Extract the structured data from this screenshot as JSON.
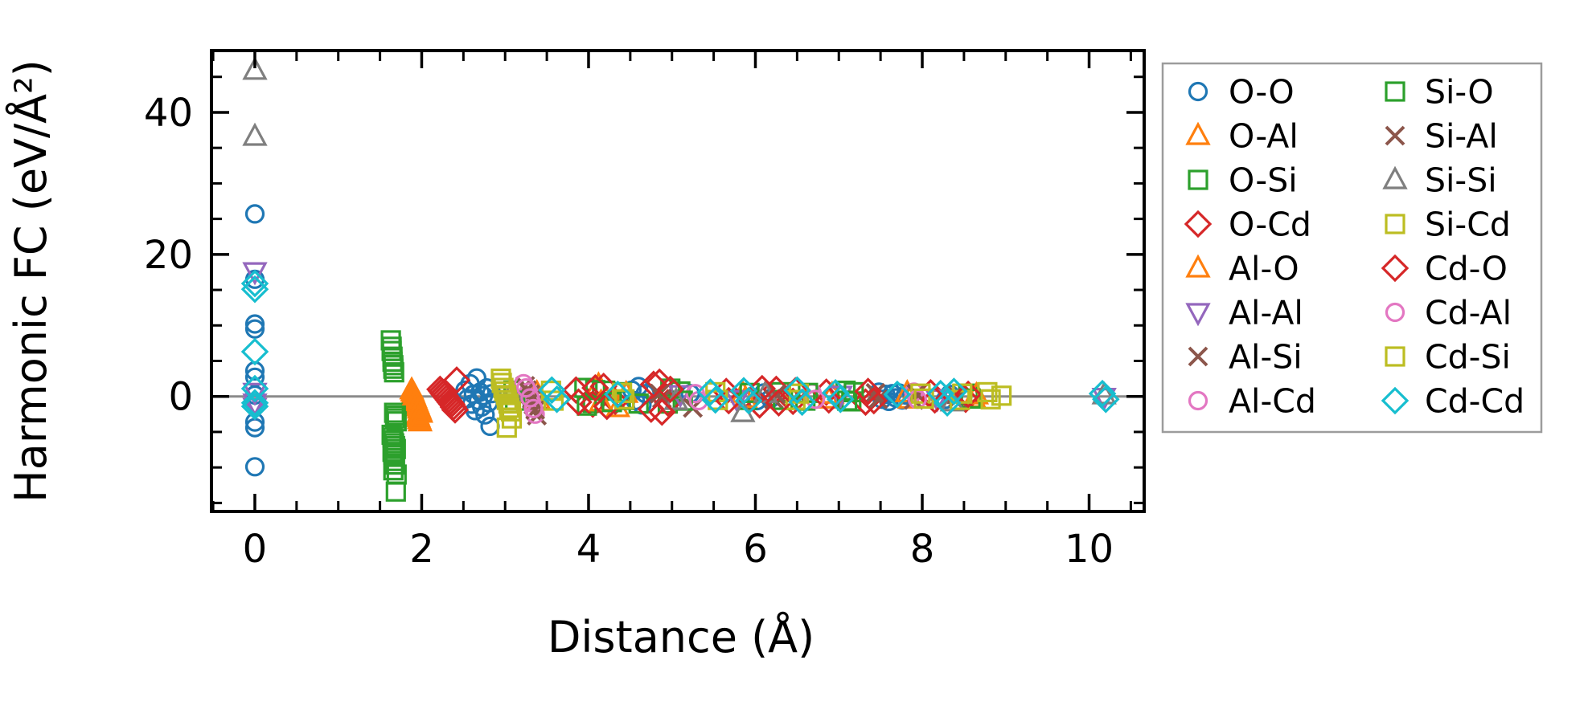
{
  "figure": {
    "background": "#ffffff",
    "frame_color": "#000000",
    "zero_line_color": "#8a8a8a",
    "legend_border_color": "#9c9c9c",
    "tick_label_color": "#000000"
  },
  "chart_data": {
    "type": "scatter",
    "title": "",
    "xlabel": "Distance (Å)",
    "ylabel": "Harmonic FC (eV/Å²)",
    "xlim": [
      -0.52,
      10.66
    ],
    "ylim": [
      -16.2,
      48.7
    ],
    "x_major_ticks": [
      0,
      2,
      4,
      6,
      8,
      10
    ],
    "x_minor_tick_step": 0.5,
    "y_major_ticks": [
      0,
      20,
      40
    ],
    "y_minor_tick_step": 5,
    "grid": false,
    "zero_line_y": 0,
    "tick_direction": "in",
    "legend_position": "outside-right, 2 columns, column-major order",
    "series": [
      {
        "name": "O-O",
        "marker": "circle",
        "color": "#1f77b4",
        "points": [
          [
            0,
            25.7
          ],
          [
            0,
            16.5
          ],
          [
            0,
            10.2
          ],
          [
            0,
            9.5
          ],
          [
            0,
            3.6
          ],
          [
            0,
            2.7
          ],
          [
            0,
            0.2
          ],
          [
            0,
            -3.6
          ],
          [
            0,
            -4.4
          ],
          [
            0,
            -9.9
          ],
          [
            2.52,
            0.9
          ],
          [
            2.55,
            -0.3
          ],
          [
            2.58,
            1.8
          ],
          [
            2.6,
            -1.1
          ],
          [
            2.62,
            0.3
          ],
          [
            2.64,
            -2.0
          ],
          [
            2.66,
            2.6
          ],
          [
            2.68,
            -0.6
          ],
          [
            2.7,
            0.6
          ],
          [
            2.72,
            -1.5
          ],
          [
            2.74,
            0.1
          ],
          [
            2.76,
            -2.6
          ],
          [
            2.78,
            1.2
          ],
          [
            2.8,
            -0.9
          ],
          [
            2.82,
            -4.2
          ],
          [
            2.84,
            0.4
          ],
          [
            4.52,
            0.9
          ],
          [
            4.56,
            -0.6
          ],
          [
            4.6,
            1.4
          ],
          [
            4.64,
            -1.2
          ],
          [
            4.68,
            0.4
          ],
          [
            5.22,
            0.4
          ],
          [
            6.02,
            -0.6
          ],
          [
            6.1,
            0.5
          ],
          [
            6.18,
            -0.3
          ],
          [
            7.48,
            0.6
          ],
          [
            7.52,
            -0.4
          ],
          [
            7.56,
            0.3
          ],
          [
            7.6,
            -0.7
          ],
          [
            7.64,
            0.4
          ],
          [
            7.68,
            -0.2
          ],
          [
            7.72,
            0.5
          ],
          [
            7.76,
            -0.5
          ],
          [
            7.8,
            0.2
          ],
          [
            8.28,
            -0.4
          ],
          [
            8.33,
            0.3
          ]
        ]
      },
      {
        "name": "O-Al",
        "marker": "triangle-up",
        "color": "#ff7f0e",
        "points": [
          [
            1.88,
            0.9
          ],
          [
            1.9,
            0.3
          ],
          [
            1.92,
            -0.3
          ],
          [
            1.94,
            -0.9
          ],
          [
            1.96,
            -1.5
          ],
          [
            1.98,
            -2.1
          ],
          [
            1.95,
            -2.7
          ],
          [
            1.97,
            -3.3
          ],
          [
            3.38,
            0.5
          ],
          [
            4.12,
            1.6
          ],
          [
            4.35,
            -1.6
          ],
          [
            5.85,
            0.4
          ],
          [
            6.88,
            -0.4
          ],
          [
            7.82,
            0.5
          ],
          [
            8.62,
            -0.3
          ]
        ]
      },
      {
        "name": "O-Si",
        "marker": "square",
        "color": "#2ca02c",
        "points": [
          [
            1.63,
            7.9
          ],
          [
            1.64,
            6.4
          ],
          [
            1.65,
            4.9
          ],
          [
            1.66,
            3.9
          ],
          [
            1.67,
            -2.3
          ],
          [
            1.68,
            -3.1
          ],
          [
            1.64,
            -5.4
          ],
          [
            1.66,
            -6.2
          ],
          [
            1.68,
            -7.0
          ],
          [
            1.65,
            -7.8
          ],
          [
            1.67,
            -9.1
          ],
          [
            1.66,
            -10.4
          ],
          [
            1.69,
            -13.4
          ],
          [
            3.1,
            0.8
          ],
          [
            3.95,
            1.2
          ],
          [
            4.05,
            -0.9
          ],
          [
            4.2,
            0.8
          ],
          [
            4.4,
            0.6
          ],
          [
            4.6,
            -1.0
          ],
          [
            4.95,
            -1.0
          ],
          [
            5.1,
            0.7
          ],
          [
            5.9,
            -0.5
          ],
          [
            6.3,
            0.6
          ],
          [
            6.6,
            -0.6
          ],
          [
            7.08,
            0.8
          ],
          [
            7.15,
            -0.7
          ],
          [
            8.55,
            0.4
          ]
        ]
      },
      {
        "name": "O-Cd",
        "marker": "diamond",
        "color": "#d62728",
        "points": [
          [
            2.22,
            1.0
          ],
          [
            2.26,
            0.4
          ],
          [
            2.3,
            -0.2
          ],
          [
            2.34,
            -0.8
          ],
          [
            2.38,
            -1.5
          ],
          [
            2.42,
            2.3
          ],
          [
            3.85,
            0.9
          ],
          [
            4.05,
            -1.1
          ],
          [
            4.18,
            1.4
          ],
          [
            4.32,
            -0.7
          ],
          [
            4.75,
            -1.8
          ],
          [
            4.85,
            2.0
          ],
          [
            4.95,
            -0.9
          ],
          [
            5.65,
            0.7
          ],
          [
            6.05,
            -1.2
          ],
          [
            6.25,
            1.0
          ],
          [
            6.45,
            -0.7
          ],
          [
            6.85,
            0.6
          ],
          [
            7.32,
            -0.8
          ],
          [
            8.1,
            0.5
          ],
          [
            8.52,
            -0.4
          ]
        ]
      },
      {
        "name": "Al-O",
        "marker": "triangle-up",
        "color": "#ff7f0e",
        "points": [
          [
            1.89,
            0.6
          ],
          [
            1.91,
            0.0
          ],
          [
            1.93,
            -0.6
          ],
          [
            1.95,
            -1.2
          ],
          [
            1.97,
            -1.8
          ],
          [
            1.99,
            -2.4
          ],
          [
            1.96,
            -3.0
          ],
          [
            1.98,
            -3.6
          ],
          [
            3.4,
            -0.5
          ],
          [
            4.15,
            -0.8
          ],
          [
            4.45,
            0.4
          ],
          [
            5.88,
            -0.3
          ],
          [
            6.92,
            0.3
          ],
          [
            7.85,
            -0.4
          ],
          [
            8.65,
            0.2
          ]
        ]
      },
      {
        "name": "Al-Al",
        "marker": "triangle-down",
        "color": "#9467bd",
        "points": [
          [
            0,
            17.6
          ],
          [
            0,
            0.6
          ],
          [
            0,
            -0.9
          ],
          [
            0,
            -1.5
          ],
          [
            5.1,
            0.3
          ],
          [
            5.78,
            -0.4
          ],
          [
            7.02,
            0.2
          ],
          [
            8.18,
            -0.3
          ],
          [
            10.18,
            -0.1
          ]
        ]
      },
      {
        "name": "Al-Si",
        "marker": "x",
        "color": "#8c564b",
        "points": [
          [
            3.24,
            1.5
          ],
          [
            3.3,
            0.3
          ],
          [
            3.34,
            -1.2
          ],
          [
            3.38,
            -2.7
          ],
          [
            4.85,
            0.4
          ],
          [
            5.25,
            -1.6
          ],
          [
            6.22,
            -0.4
          ],
          [
            7.44,
            0.5
          ],
          [
            7.9,
            -0.5
          ],
          [
            8.4,
            0.3
          ]
        ]
      },
      {
        "name": "Al-Cd",
        "marker": "circle",
        "color": "#e377c2",
        "points": [
          [
            3.22,
            1.8
          ],
          [
            3.28,
            0.6
          ],
          [
            3.32,
            -0.9
          ],
          [
            3.36,
            -2.5
          ],
          [
            5.28,
            0.4
          ],
          [
            6.68,
            0.5
          ],
          [
            7.9,
            0.6
          ]
        ]
      },
      {
        "name": "Si-O",
        "marker": "square",
        "color": "#2ca02c",
        "points": [
          [
            1.64,
            7.0
          ],
          [
            1.65,
            5.6
          ],
          [
            1.66,
            4.4
          ],
          [
            1.67,
            3.4
          ],
          [
            1.69,
            -2.7
          ],
          [
            1.7,
            -3.5
          ],
          [
            1.65,
            -5.8
          ],
          [
            1.67,
            -6.6
          ],
          [
            1.69,
            -7.4
          ],
          [
            1.66,
            -8.2
          ],
          [
            1.68,
            -9.6
          ],
          [
            1.7,
            -11.0
          ],
          [
            3.12,
            -0.6
          ],
          [
            3.98,
            -1.3
          ],
          [
            4.08,
            0.9
          ],
          [
            4.28,
            -0.8
          ],
          [
            4.43,
            -0.5
          ],
          [
            4.98,
            1.1
          ],
          [
            5.13,
            -0.6
          ],
          [
            5.93,
            0.5
          ],
          [
            6.33,
            -0.5
          ],
          [
            6.63,
            0.5
          ],
          [
            7.1,
            -0.6
          ],
          [
            7.18,
            0.6
          ],
          [
            8.58,
            -0.3
          ]
        ]
      },
      {
        "name": "Si-Al",
        "marker": "x",
        "color": "#8c564b",
        "points": [
          [
            3.26,
            0.9
          ],
          [
            3.32,
            -0.4
          ],
          [
            3.36,
            -1.9
          ],
          [
            4.88,
            -0.3
          ],
          [
            6.25,
            0.3
          ],
          [
            7.47,
            -0.4
          ],
          [
            7.93,
            0.4
          ],
          [
            8.43,
            -0.2
          ]
        ]
      },
      {
        "name": "Si-Si",
        "marker": "triangle-up",
        "color": "#7f7f7f",
        "points": [
          [
            0,
            45.9
          ],
          [
            0,
            36.6
          ],
          [
            3.08,
            0.5
          ],
          [
            5.05,
            -0.6
          ],
          [
            5.85,
            -2.3
          ],
          [
            6.12,
            0.4
          ],
          [
            8.36,
            -0.8
          ],
          [
            10.18,
            0.2
          ]
        ]
      },
      {
        "name": "Si-Cd",
        "marker": "square",
        "color": "#bcbd22",
        "points": [
          [
            2.95,
            2.5
          ],
          [
            2.98,
            1.2
          ],
          [
            3.01,
            0.2
          ],
          [
            3.04,
            -1.0
          ],
          [
            3.07,
            -2.1
          ],
          [
            3.02,
            -4.4
          ],
          [
            3.55,
            0.8
          ],
          [
            4.4,
            0.5
          ],
          [
            5.52,
            0.6
          ],
          [
            6.48,
            -0.5
          ],
          [
            7.98,
            0.4
          ],
          [
            8.45,
            -0.5
          ],
          [
            8.78,
            0.6
          ],
          [
            8.95,
            0.1
          ]
        ]
      },
      {
        "name": "Cd-O",
        "marker": "diamond",
        "color": "#d62728",
        "points": [
          [
            2.24,
            0.7
          ],
          [
            2.28,
            0.1
          ],
          [
            2.32,
            -0.5
          ],
          [
            2.36,
            -1.1
          ],
          [
            2.4,
            -1.9
          ],
          [
            3.88,
            -0.8
          ],
          [
            4.08,
            1.2
          ],
          [
            4.22,
            -1.4
          ],
          [
            4.78,
            1.7
          ],
          [
            4.88,
            -2.2
          ],
          [
            4.98,
            1.0
          ],
          [
            5.68,
            -0.6
          ],
          [
            6.08,
            1.1
          ],
          [
            6.28,
            -0.9
          ],
          [
            6.48,
            0.8
          ],
          [
            6.88,
            -0.5
          ],
          [
            7.35,
            0.7
          ],
          [
            7.42,
            -0.6
          ],
          [
            8.15,
            -0.5
          ],
          [
            8.55,
            0.3
          ]
        ]
      },
      {
        "name": "Cd-Al",
        "marker": "circle",
        "color": "#e377c2",
        "points": [
          [
            3.25,
            1.2
          ],
          [
            3.3,
            -0.2
          ],
          [
            3.34,
            -1.7
          ],
          [
            5.32,
            -0.6
          ],
          [
            6.72,
            -0.4
          ],
          [
            7.94,
            -0.4
          ]
        ]
      },
      {
        "name": "Cd-Si",
        "marker": "square",
        "color": "#bcbd22",
        "points": [
          [
            2.96,
            1.9
          ],
          [
            2.99,
            0.7
          ],
          [
            3.02,
            -0.5
          ],
          [
            3.05,
            -1.6
          ],
          [
            3.08,
            -3.1
          ],
          [
            3.58,
            -0.6
          ],
          [
            4.43,
            -0.4
          ],
          [
            5.55,
            -0.5
          ],
          [
            6.52,
            0.4
          ],
          [
            8.02,
            -0.3
          ],
          [
            8.48,
            0.4
          ],
          [
            8.82,
            -0.4
          ]
        ]
      },
      {
        "name": "Cd-Cd",
        "marker": "diamond",
        "color": "#17becf",
        "points": [
          [
            0,
            15.9
          ],
          [
            0,
            15.1
          ],
          [
            0,
            6.3
          ],
          [
            0,
            1.1
          ],
          [
            0,
            -0.9
          ],
          [
            0,
            -1.4
          ],
          [
            3.56,
            0.9
          ],
          [
            3.62,
            -0.4
          ],
          [
            4.35,
            0.3
          ],
          [
            5.46,
            0.6
          ],
          [
            5.52,
            -0.5
          ],
          [
            5.86,
            0.8
          ],
          [
            5.92,
            -0.6
          ],
          [
            6.5,
            0.9
          ],
          [
            6.56,
            -0.8
          ],
          [
            6.96,
            0.5
          ],
          [
            7.02,
            -0.4
          ],
          [
            7.7,
            0.3
          ],
          [
            8.22,
            0.4
          ],
          [
            8.3,
            -0.9
          ],
          [
            8.38,
            0.7
          ],
          [
            10.16,
            0.4
          ],
          [
            10.2,
            -0.4
          ]
        ]
      }
    ]
  }
}
